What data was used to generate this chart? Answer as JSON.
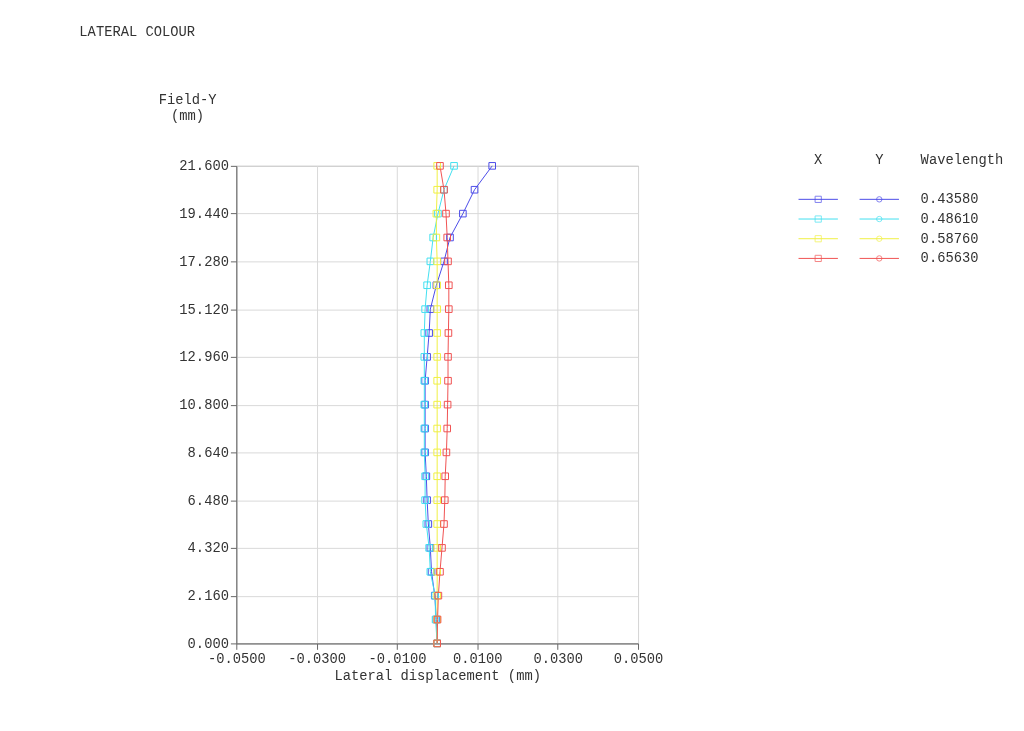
{
  "chart_data": {
    "type": "line",
    "title": "LATERAL COLOUR",
    "xlabel": "Lateral displacement (mm)",
    "ylabel": "Field-Y\n(mm)",
    "legend_title": "Wavelength",
    "annotations": [
      "X",
      "Y"
    ],
    "series": [
      {
        "name": "0.43580",
        "color": "#4a4ae8",
        "x": [
          0,
          -0.0002,
          -0.0006,
          -0.0014,
          -0.0017,
          -0.0022,
          -0.0025,
          -0.0027,
          -0.003,
          -0.003,
          -0.003,
          -0.003,
          -0.0025,
          -0.002,
          -0.0017,
          -0.0002,
          0.0017,
          0.0032,
          0.0064,
          0.0093,
          0.0137
        ],
        "values": [
          0,
          1.08,
          2.16,
          3.24,
          4.32,
          5.4,
          6.48,
          7.56,
          8.64,
          9.72,
          10.8,
          11.88,
          12.96,
          14.04,
          15.12,
          16.2,
          17.28,
          18.36,
          19.44,
          20.52,
          21.6
        ]
      },
      {
        "name": "0.48610",
        "color": "#40e0f0",
        "x": [
          0,
          -0.0004,
          -0.0005,
          -0.0017,
          -0.002,
          -0.0027,
          -0.003,
          -0.003,
          -0.0032,
          -0.0032,
          -0.0032,
          -0.0032,
          -0.0032,
          -0.0032,
          -0.003,
          -0.0025,
          -0.0017,
          -0.001,
          0.0002,
          0.0017,
          0.0042
        ],
        "values": [
          0,
          1.08,
          2.16,
          3.24,
          4.32,
          5.4,
          6.48,
          7.56,
          8.64,
          9.72,
          10.8,
          11.88,
          12.96,
          14.04,
          15.12,
          16.2,
          17.28,
          18.36,
          19.44,
          20.52,
          21.6
        ]
      },
      {
        "name": "0.58760",
        "color": "#f0f040",
        "x": [
          0,
          0,
          0,
          0,
          0,
          0,
          0,
          0,
          0,
          0,
          0,
          0,
          0,
          0,
          0,
          0,
          0,
          -0.0002,
          -0.0002,
          0,
          0
        ],
        "values": [
          0,
          1.08,
          2.16,
          3.24,
          4.32,
          5.4,
          6.48,
          7.56,
          8.64,
          9.72,
          10.8,
          11.88,
          12.96,
          14.04,
          15.12,
          16.2,
          17.28,
          18.36,
          19.44,
          20.52,
          21.6
        ]
      },
      {
        "name": "0.65630",
        "color": "#f05050",
        "x": [
          0,
          0.0001,
          0.0003,
          0.0007,
          0.0012,
          0.0017,
          0.0019,
          0.002,
          0.0023,
          0.0025,
          0.0026,
          0.0027,
          0.0027,
          0.0028,
          0.0029,
          0.0029,
          0.0027,
          0.0025,
          0.0022,
          0.0017,
          0.0007
        ],
        "values": [
          0,
          1.08,
          2.16,
          3.24,
          4.32,
          5.4,
          6.48,
          7.56,
          8.64,
          9.72,
          10.8,
          11.88,
          12.96,
          14.04,
          15.12,
          16.2,
          17.28,
          18.36,
          19.44,
          20.52,
          21.6
        ]
      }
    ],
    "xlim": [
      -0.05,
      0.05
    ],
    "xticks": [
      {
        "value": -0.05,
        "label": "-0.0500"
      },
      {
        "value": -0.03,
        "label": "-0.0300"
      },
      {
        "value": -0.01,
        "label": "-0.0100"
      },
      {
        "value": 0.01,
        "label": "0.0100"
      },
      {
        "value": 0.03,
        "label": "0.0300"
      },
      {
        "value": 0.05,
        "label": "0.0500"
      }
    ],
    "ylim": [
      0,
      21.6
    ],
    "yticks": [
      {
        "value": 0,
        "label": "0.000"
      },
      {
        "value": 2.16,
        "label": "2.160"
      },
      {
        "value": 4.32,
        "label": "4.320"
      },
      {
        "value": 6.48,
        "label": "6.480"
      },
      {
        "value": 8.64,
        "label": "8.640"
      },
      {
        "value": 10.8,
        "label": "10.800"
      },
      {
        "value": 12.96,
        "label": "12.960"
      },
      {
        "value": 15.12,
        "label": "15.120"
      },
      {
        "value": 17.28,
        "label": "17.280"
      },
      {
        "value": 19.44,
        "label": "19.440"
      },
      {
        "value": 21.6,
        "label": "21.600"
      }
    ],
    "grid": true,
    "legend": "top right",
    "marker": "square",
    "line_style": "solid"
  }
}
